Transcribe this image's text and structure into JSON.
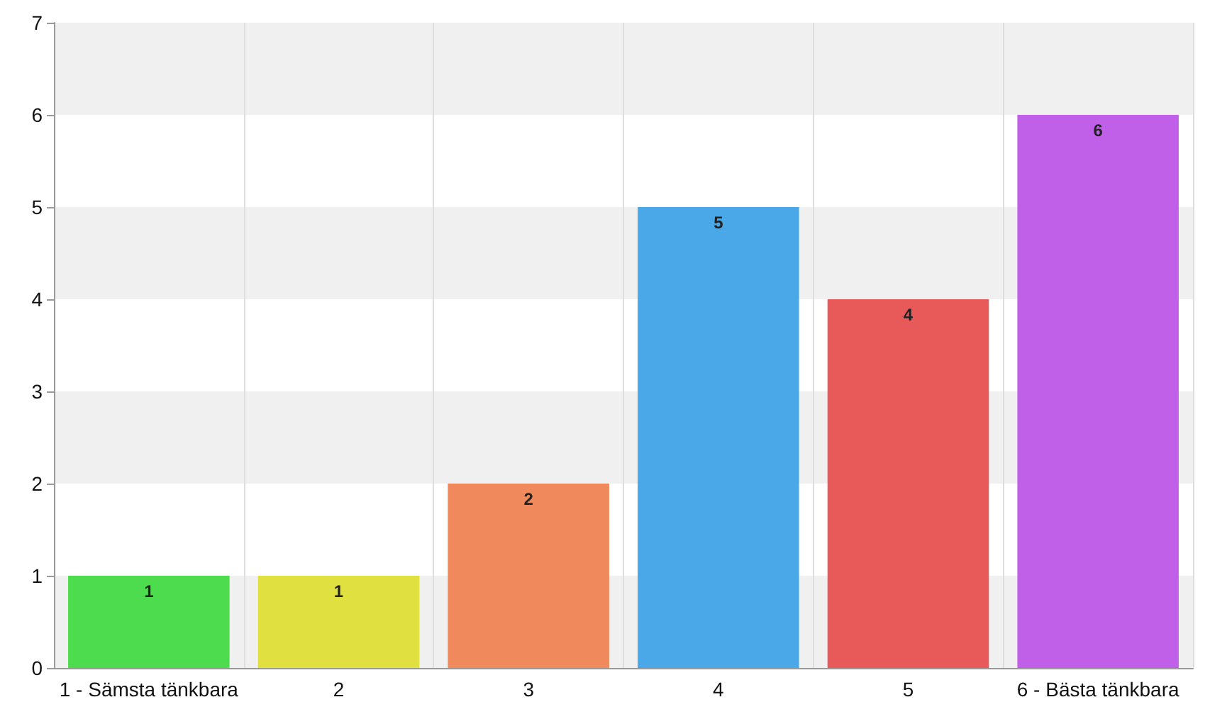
{
  "chart_data": {
    "type": "bar",
    "categories": [
      "1 - Sämsta tänkbara",
      "2",
      "3",
      "4",
      "5",
      "6 - Bästa tänkbara"
    ],
    "values": [
      1,
      1,
      2,
      5,
      4,
      6
    ],
    "colors": [
      "#4ddc4d",
      "#e0e040",
      "#f08a5d",
      "#4aa8e8",
      "#e85a5a",
      "#c060e8"
    ],
    "ylim": [
      0,
      7
    ],
    "yticks": [
      0,
      1,
      2,
      3,
      4,
      5,
      6,
      7
    ],
    "grid": true,
    "data_labels": true
  }
}
